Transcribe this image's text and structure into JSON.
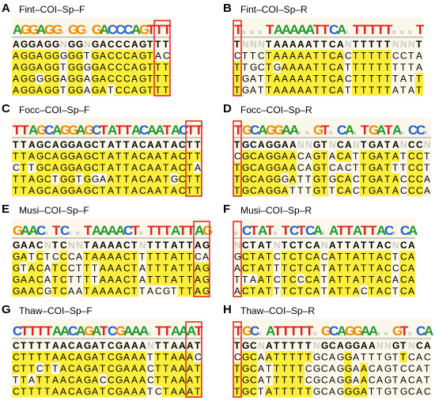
{
  "panels": [
    {
      "label": "A",
      "title": "Fint–COI–Sp–F",
      "logo": "AGGAGGNGGNGACCCAGTTT",
      "consensus": "AGGAGGNGGNGACCCAGTTT",
      "sequences": [
        "AGGAGGGGGTGACCCAGTAC",
        "AGGAGGTGGGGACCCAGTTT",
        "AGGGGGAGGAGACCCAGTTT",
        "AGGAGGTGGAGATCCAGTTT"
      ]
    },
    {
      "label": "B",
      "title": "Fint–COI–Sp–R",
      "logo": "TNNNTAAAAATTCANTTTTTNNNT",
      "consensus": "TNNNTAAAAATTCANTTTTTNNNT",
      "sequences": [
        "CTTCTAAAAATTCACTTTTTCCTA",
        "TTGCTGAAAATTCATTTTTTTTTA",
        "TGATTAAAAATTCACTTTTTTATT",
        "TGATTAAAAATTCATTTTTTATAT"
      ]
    },
    {
      "label": "C",
      "title": "Focc–COI–Sp–F",
      "logo": "TTAGCAGGAGCTATTACAATACTT",
      "consensus": "TTAGCAGGAGCTATTACAATACTT",
      "sequences": [
        "TTAGCAGGAGCTATTACAATACTT",
        "CTTGCAGGAGCTATTACAATACTA",
        "TTAGCTGGTGGAATTACAATGCTT",
        "TTAGCAGGAGCTATTACAATACTT"
      ]
    },
    {
      "label": "D",
      "title": "Focc–COI–Sp–R",
      "logo": "TGCAGGAANNGTNCANTGATANCCN",
      "consensus": "TGCAGGAANNGTNCANTGATANCCN",
      "sequences": [
        "CGCAGGAACAGTACATTGATATCCT",
        "TGCAGGAACAGTCACTTGATTTCCT",
        "TGCAGGGATTGTGCACTGATACCCA",
        "TGCAGGATTTGTTCACTGATACCCA"
      ]
    },
    {
      "label": "E",
      "title": "Musi–COI–Sp–F",
      "logo": "GAACNTCNNTAAAACTNTTTATTAG",
      "consensus": "GAACNTCNNTAAAACTNTTTATTAG",
      "sequences": [
        "GATCTCCCATAAAACTTTTTATTCA",
        "GTACATCCTTTAAACTATTTATTAG",
        "GAACATCTTTTAAACTATTTATTAG",
        "GAACGTCAATAAAACTTACGTTTAG"
      ]
    },
    {
      "label": "F",
      "title": "Musi–COI–Sp–R",
      "logo": "NCTATNTCTCANATTATTACNCA",
      "consensus": "NCTATNTCTCANATTATTACNCA",
      "sequences": [
        "GCTATCTCTCACATTATTACTCA",
        "ACTATTTCTCATATTATTACCCA",
        "TTAATCTCCCATATTATTACACA",
        "ACTATTTCTCATATTACTACTCA"
      ]
    },
    {
      "label": "G",
      "title": "Thaw–COI–Sp–F",
      "logo": "CTTTTAACAGATCGAAANTTAAAT",
      "consensus": "CTTTTAACAGATCGAAANTTAAAT",
      "sequences": [
        "CTTTTAACAGATCGAAATTTAAAC",
        "CTTCTTACAGATCGAAACTTAAAT",
        "TTATTAACAGACCGAAACTTAAAT",
        "CTTTTAACAGATCGAAATCTAAAT"
      ]
    },
    {
      "label": "H",
      "title": "Thaw–COI–Sp–R",
      "logo": "TGCNATTTTTNGCAGGAANNGTNCA",
      "consensus": "TGCNATTTTTNGCAGGAANNGTNCA",
      "sequences": [
        "CGCAATTTTTGCAGGATTTGTTCAC",
        "TGCATTTTTCGCAGGAACAGTCCAT",
        "TGCATTTTTCGCAGGAACAGTACAT",
        "TGCTATTTTTGCAGGGATTGTGCAC"
      ]
    }
  ]
}
